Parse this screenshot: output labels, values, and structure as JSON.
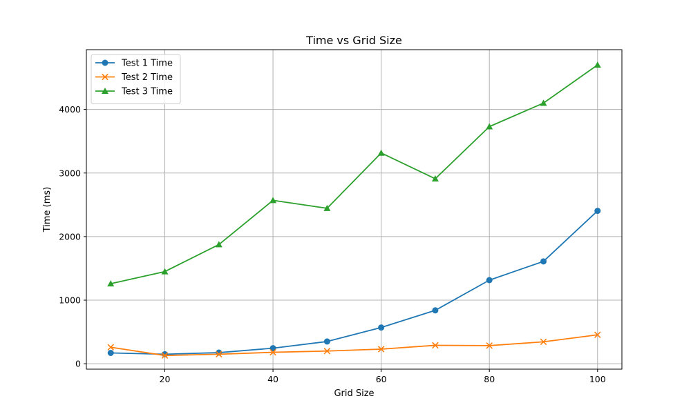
{
  "chart_data": {
    "type": "line",
    "title": "Time vs Grid Size",
    "xlabel": "Grid Size",
    "ylabel": "Time (ms)",
    "xlim": [
      5.5,
      104.5
    ],
    "ylim": [
      -85,
      4940
    ],
    "xticks": [
      20,
      40,
      60,
      80,
      100
    ],
    "yticks": [
      0,
      1000,
      2000,
      3000,
      4000
    ],
    "grid": true,
    "legend_position": "top-left",
    "x": [
      10,
      20,
      30,
      40,
      50,
      60,
      70,
      80,
      90,
      100
    ],
    "series": [
      {
        "name": "Test 1 Time",
        "color": "#1f77b4",
        "marker": "circle",
        "values": [
          170,
          150,
          175,
          245,
          350,
          570,
          840,
          1315,
          1610,
          2405
        ]
      },
      {
        "name": "Test 2 Time",
        "color": "#ff7f0e",
        "marker": "x",
        "values": [
          260,
          130,
          150,
          180,
          200,
          230,
          290,
          285,
          345,
          455
        ]
      },
      {
        "name": "Test 3 Time",
        "color": "#2ca02c",
        "marker": "triangle",
        "values": [
          1260,
          1450,
          1875,
          2570,
          2445,
          3315,
          2910,
          3730,
          4100,
          4700
        ]
      }
    ]
  }
}
